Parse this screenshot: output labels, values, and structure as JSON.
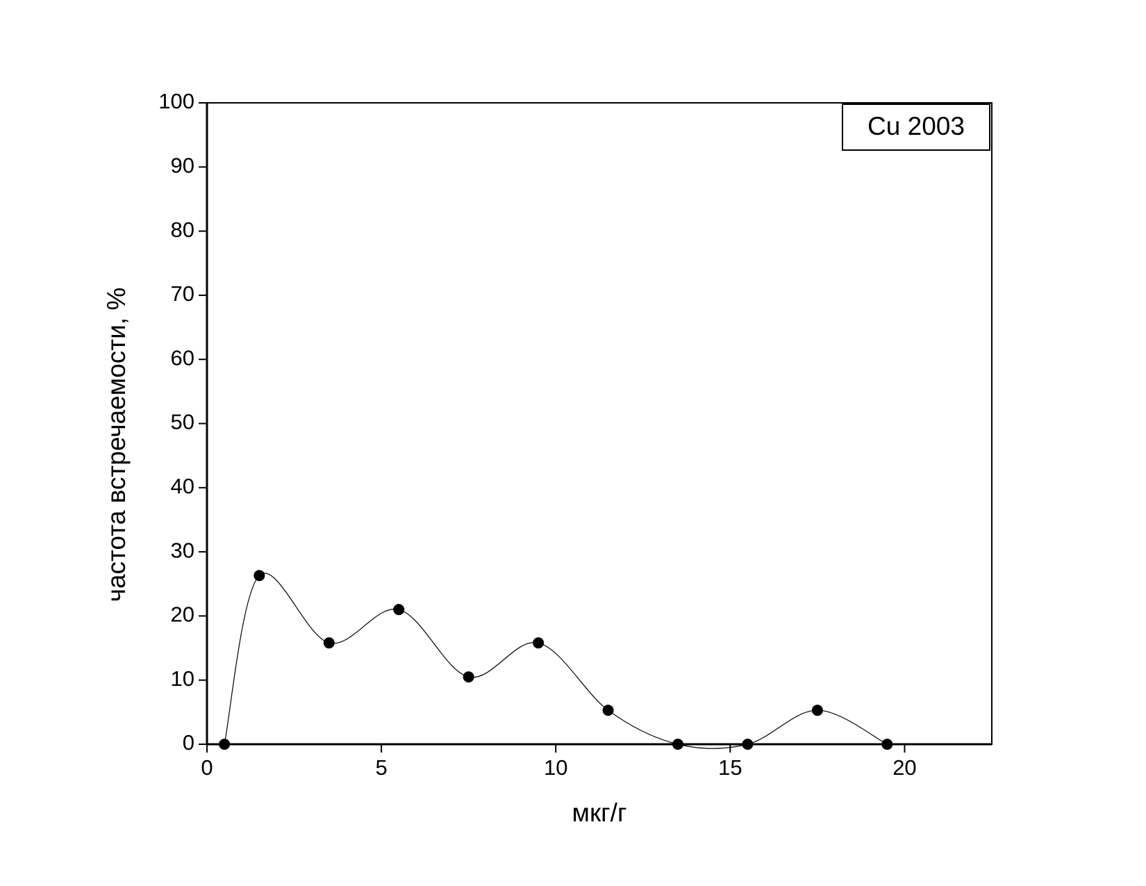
{
  "chart_data": {
    "type": "scatter",
    "xlabel": "мкг/г",
    "ylabel": "частота встречаемости, %",
    "x": [
      0.5,
      1.5,
      3.5,
      5.5,
      7.5,
      9.5,
      11.5,
      13.5,
      15.5,
      17.5,
      19.5
    ],
    "series": [
      {
        "name": "Cu 2003",
        "color": "#000000",
        "values": [
          0,
          26.3,
          15.8,
          21,
          10.5,
          15.8,
          5.3,
          0,
          0,
          5.3,
          0
        ]
      }
    ],
    "xlim": [
      0,
      22.5
    ],
    "ylim": [
      0,
      100
    ],
    "xticks": [
      0,
      5,
      10,
      15,
      20
    ],
    "yticks": [
      0,
      10,
      20,
      30,
      40,
      50,
      60,
      70,
      80,
      90,
      100
    ],
    "smooth": true,
    "legend": "upper right"
  }
}
